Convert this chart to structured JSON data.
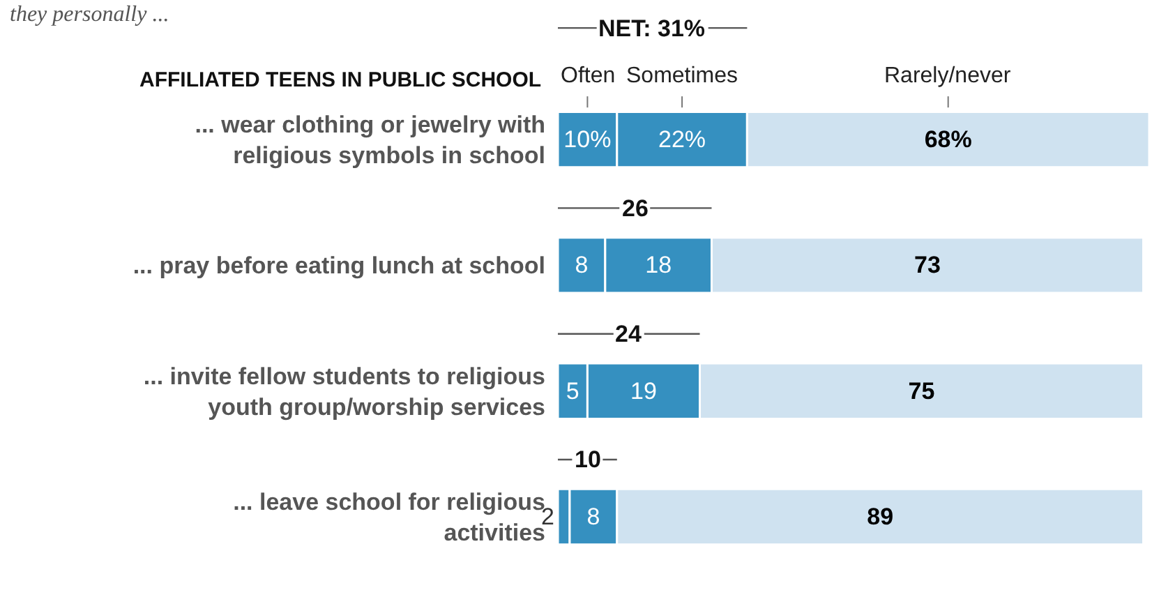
{
  "chart_data": {
    "type": "bar",
    "orientation": "horizontal",
    "stacked": true,
    "subtitle": "they personally ...",
    "ylabel": "AFFILIATED TEENS IN PUBLIC SCHOOL",
    "categories": [
      "... wear clothing or jewelry with\nreligious symbols in school",
      "... pray before eating lunch at school",
      "... invite fellow students to religious\nyouth group/worship services",
      "... leave school for religious\nactivities"
    ],
    "series": [
      {
        "name": "Often",
        "color": "#3590c0",
        "values": [
          10,
          8,
          5,
          2
        ],
        "value_labels": [
          "10%",
          "8",
          "5",
          "2"
        ]
      },
      {
        "name": "Sometimes",
        "color": "#3590c0",
        "values": [
          22,
          18,
          19,
          8
        ],
        "value_labels": [
          "22%",
          "18",
          "19",
          "8"
        ]
      },
      {
        "name": "Rarely/never",
        "color": "#cfe2f0",
        "values": [
          68,
          73,
          75,
          89
        ],
        "value_labels": [
          "68%",
          "73",
          "75",
          "89"
        ]
      }
    ],
    "annotations": [
      "NET: 31%",
      "26",
      "24",
      "10"
    ],
    "xlim": [
      0,
      100
    ],
    "legend": false,
    "tick_labels": "y"
  }
}
